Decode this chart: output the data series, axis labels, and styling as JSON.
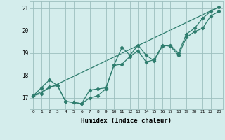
{
  "xlabel": "Humidex (Indice chaleur)",
  "ylabel": "",
  "xlim": [
    -0.5,
    23.5
  ],
  "ylim": [
    16.5,
    21.3
  ],
  "yticks": [
    17,
    18,
    19,
    20,
    21
  ],
  "xticks": [
    0,
    1,
    2,
    3,
    4,
    5,
    6,
    7,
    8,
    9,
    10,
    11,
    12,
    13,
    14,
    15,
    16,
    17,
    18,
    19,
    20,
    21,
    22,
    23
  ],
  "bg_color": "#d4edec",
  "grid_color": "#9cbfbe",
  "line_color": "#2e7d6e",
  "series1": {
    "x": [
      0,
      1,
      2,
      3,
      4,
      5,
      6,
      7,
      8,
      9,
      10,
      11,
      12,
      13,
      14,
      15,
      16,
      17,
      18,
      19,
      20,
      21,
      22,
      23
    ],
    "y": [
      17.1,
      17.45,
      17.8,
      17.55,
      16.85,
      16.8,
      16.75,
      17.35,
      17.4,
      17.45,
      18.45,
      19.25,
      18.9,
      19.35,
      18.9,
      18.65,
      19.3,
      19.35,
      19.0,
      19.85,
      20.1,
      20.55,
      20.85,
      21.05
    ]
  },
  "series2": {
    "x": [
      0,
      1,
      2,
      3,
      4,
      5,
      6,
      7,
      8,
      9,
      10,
      11,
      12,
      13,
      14,
      15,
      16,
      17,
      18,
      19,
      20,
      21,
      22,
      23
    ],
    "y": [
      17.1,
      17.2,
      17.5,
      17.55,
      16.85,
      16.8,
      16.75,
      17.0,
      17.1,
      17.4,
      18.45,
      18.5,
      18.85,
      19.1,
      18.6,
      18.7,
      19.35,
      19.3,
      18.9,
      19.7,
      19.95,
      20.1,
      20.65,
      20.85
    ]
  },
  "series3": {
    "x": [
      0,
      23
    ],
    "y": [
      17.1,
      21.05
    ]
  },
  "marker": "D",
  "markersize": 2.2,
  "linewidth": 0.9
}
